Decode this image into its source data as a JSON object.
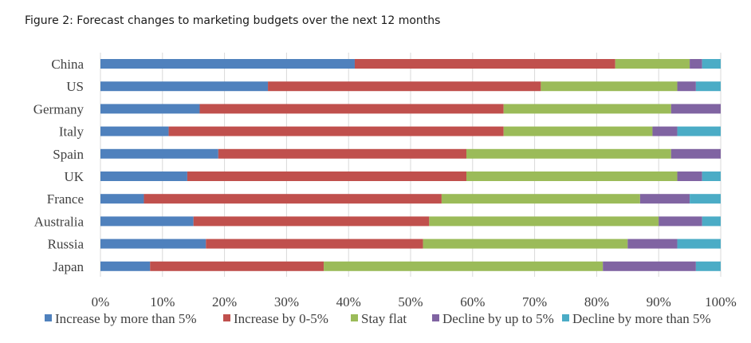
{
  "figure_title": "Figure 2: Forecast changes to marketing budgets over the next 12 months",
  "chart_data": {
    "type": "bar",
    "orientation": "horizontal",
    "stacked": true,
    "title": "Figure 2: Forecast changes to marketing budgets over the next 12 months",
    "xlabel": "",
    "ylabel": "",
    "categories": [
      "China",
      "US",
      "Germany",
      "Italy",
      "Spain",
      "UK",
      "France",
      "Australia",
      "Russia",
      "Japan"
    ],
    "x_ticks": [
      "0%",
      "10%",
      "20%",
      "30%",
      "40%",
      "50%",
      "60%",
      "70%",
      "80%",
      "90%",
      "100%"
    ],
    "xlim": [
      0,
      100
    ],
    "grid": "vertical",
    "legend_position": "bottom",
    "series": [
      {
        "name": "Increase by more than 5%",
        "color": "#4f81bd",
        "values": [
          41,
          27,
          16,
          11,
          19,
          14,
          7,
          15,
          17,
          8
        ]
      },
      {
        "name": "Increase by 0-5%",
        "color": "#c0504d",
        "values": [
          42,
          44,
          49,
          54,
          40,
          45,
          48,
          38,
          35,
          28
        ]
      },
      {
        "name": "Stay flat",
        "color": "#9bbb59",
        "values": [
          12,
          22,
          27,
          24,
          33,
          34,
          32,
          37,
          33,
          45
        ]
      },
      {
        "name": "Decline by up to 5%",
        "color": "#8064a2",
        "values": [
          2,
          3,
          8,
          4,
          8,
          4,
          8,
          7,
          8,
          15
        ]
      },
      {
        "name": "Decline by more than 5%",
        "color": "#4bacc6",
        "values": [
          3,
          4,
          0,
          7,
          0,
          3,
          5,
          3,
          7,
          4
        ]
      }
    ]
  }
}
